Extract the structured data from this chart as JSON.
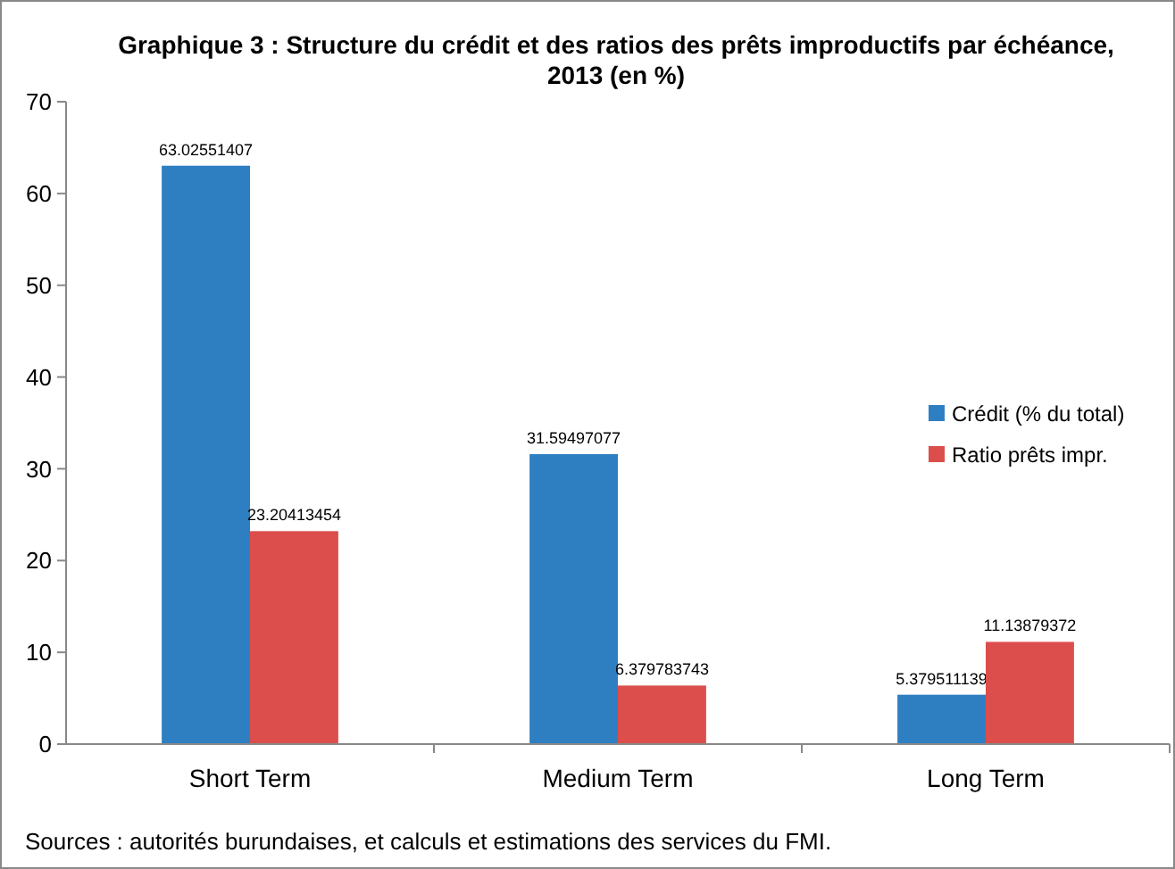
{
  "chart_data": {
    "type": "bar",
    "title": "Graphique 3 : Structure du crédit et des ratios des prêts improductifs par échéance, 2013 (en %)",
    "categories": [
      "Short Term",
      "Medium Term",
      "Long Term"
    ],
    "series": [
      {
        "name": "Crédit (% du total)",
        "color": "#2e7fc2",
        "values": [
          63.02551407,
          31.59497077,
          5.379511139
        ]
      },
      {
        "name": "Ratio prêts impr.",
        "color": "#dc4e4c",
        "values": [
          23.20413454,
          6.379783743,
          11.13879372
        ]
      }
    ],
    "ylim": [
      0,
      70
    ],
    "yticks": [
      0,
      10,
      20,
      30,
      40,
      50,
      60,
      70
    ],
    "grid": false,
    "legend": "right",
    "data_labels": true,
    "annotations": [
      "Sources : autorités burundaises, et calculs et estimations des services du FMI."
    ]
  }
}
